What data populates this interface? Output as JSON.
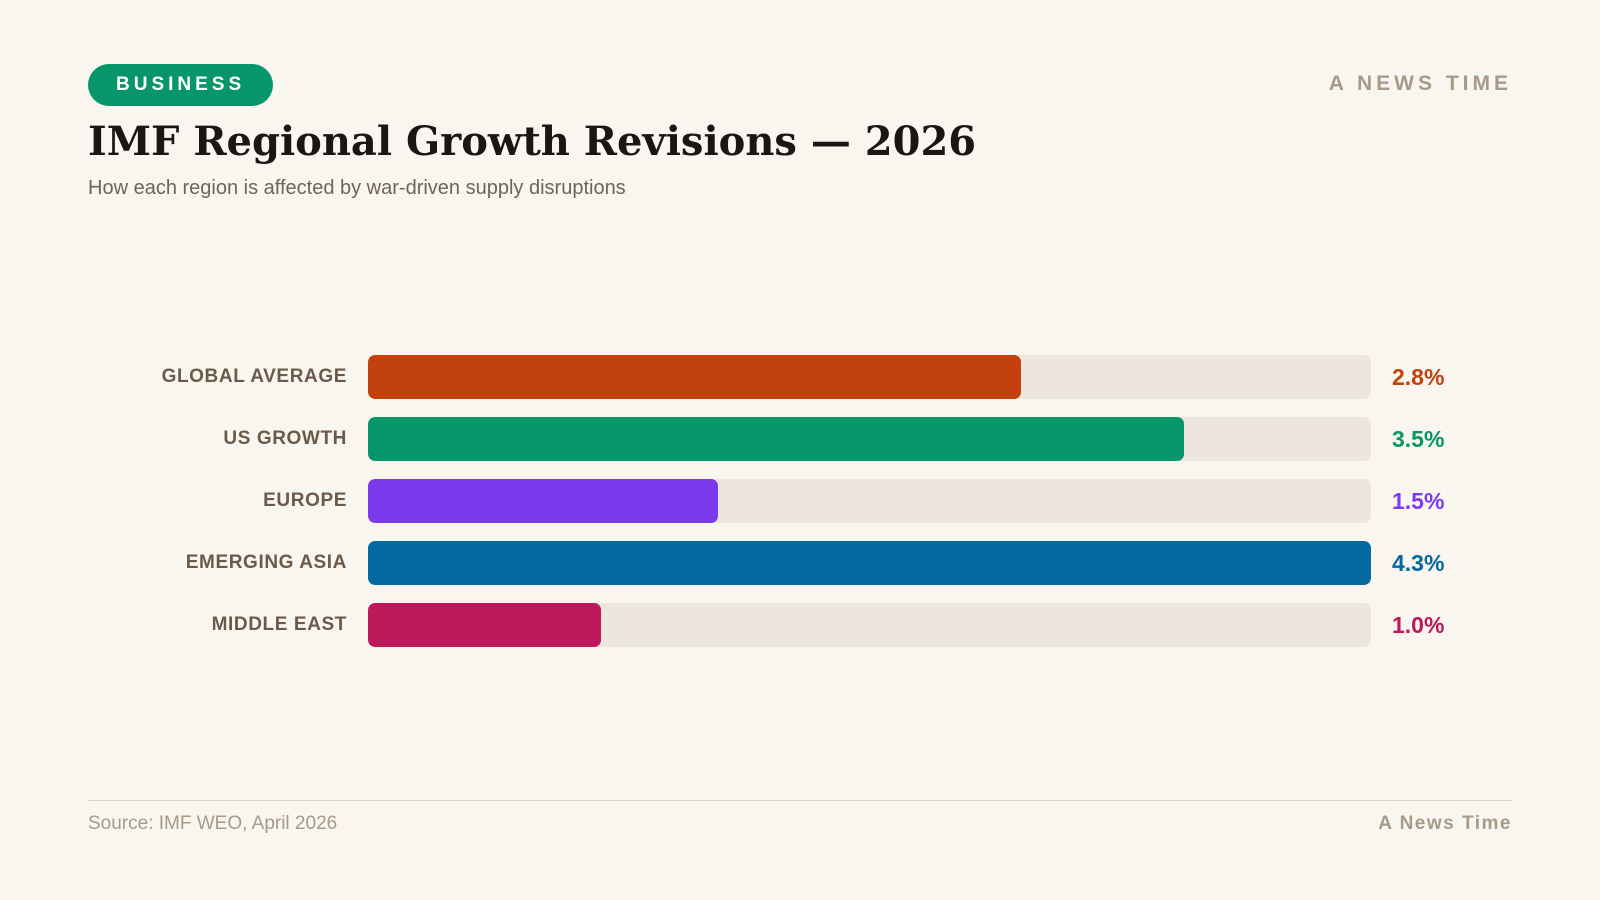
{
  "header": {
    "badge": "BUSINESS",
    "brand": "A NEWS TIME",
    "title": "IMF Regional Growth Revisions — 2026",
    "subtitle": "How each region is affected by war-driven supply disruptions"
  },
  "chart_data": {
    "type": "bar",
    "orientation": "horizontal",
    "title": "IMF Regional Growth Revisions — 2026",
    "subtitle": "How each region is affected by war-driven supply disruptions",
    "xlim": [
      0,
      4.3
    ],
    "unit": "%",
    "grid": false,
    "categories": [
      "GLOBAL AVERAGE",
      "US GROWTH",
      "EUROPE",
      "EMERGING ASIA",
      "MIDDLE EAST"
    ],
    "values": [
      2.8,
      3.5,
      1.5,
      4.3,
      1.0
    ],
    "value_labels": [
      "2.8%",
      "3.5%",
      "1.5%",
      "4.3%",
      "1.0%"
    ],
    "colors": [
      "#c2410c",
      "#079669",
      "#7c3aed",
      "#0369a1",
      "#be185d"
    ]
  },
  "footer": {
    "source": "Source: IMF WEO, April 2026",
    "brand": "A News Time"
  },
  "colors": {
    "background": "#f9f5ef",
    "badge": "#079669",
    "track": "#ede6dd"
  }
}
